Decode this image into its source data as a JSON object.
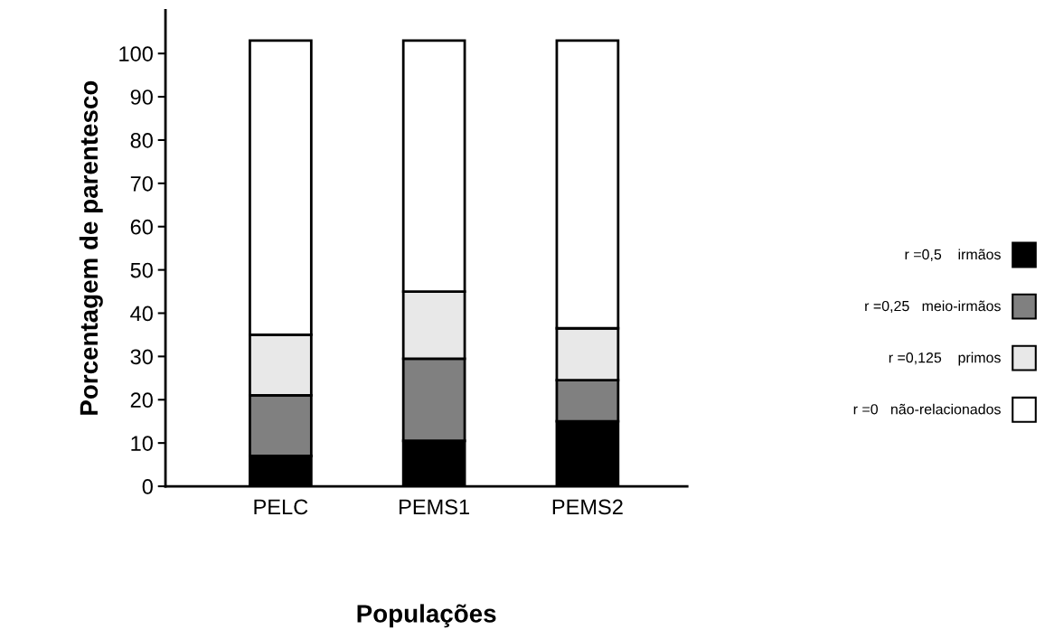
{
  "chart_data": {
    "type": "bar",
    "stacked": true,
    "xlabel": "Populações",
    "ylabel": "Porcentagem de parentesco",
    "categories": [
      "PELC",
      "PEMS1",
      "PEMS2"
    ],
    "series": [
      {
        "name": "r =0,5    irmãos",
        "color": "#000000",
        "values": [
          7,
          10.5,
          15
        ]
      },
      {
        "name": "r =0,25   meio-irmãos",
        "color": "#808080",
        "values": [
          14,
          19,
          9.5
        ]
      },
      {
        "name": "r =0,125    primos",
        "color": "#e8e8e8",
        "values": [
          14,
          15.5,
          12
        ]
      },
      {
        "name": "r =0   não-relacionados",
        "color": "#ffffff",
        "values": [
          68,
          58,
          66.5
        ]
      }
    ],
    "ylim": [
      0,
      110
    ],
    "yticks": [
      0,
      10,
      20,
      30,
      40,
      50,
      60,
      70,
      80,
      90,
      100
    ],
    "grid": false,
    "legend": "right"
  }
}
